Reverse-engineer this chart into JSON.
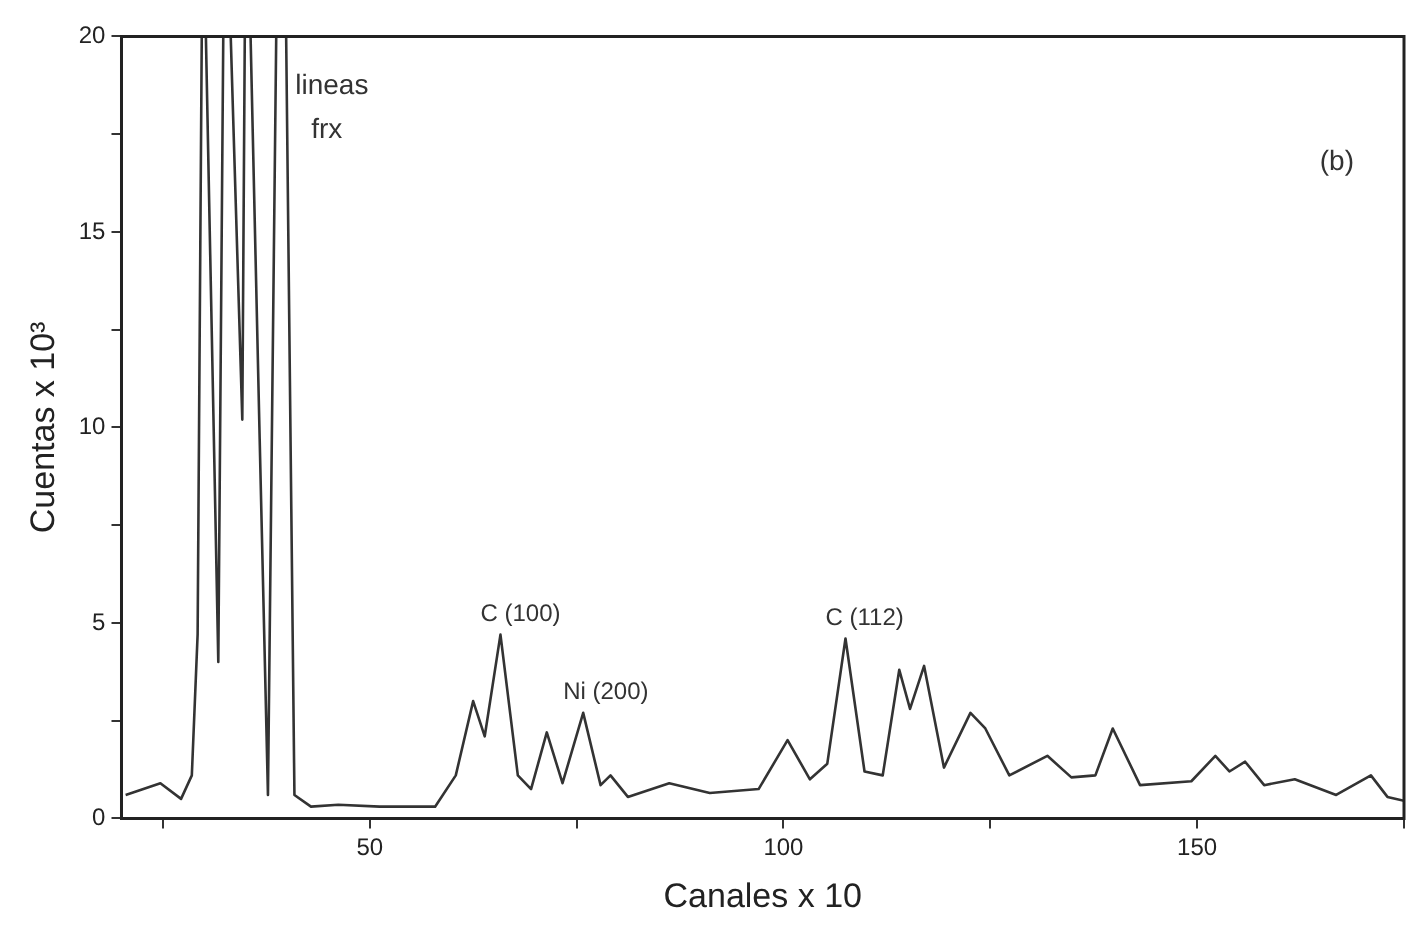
{
  "chart_data": {
    "type": "line",
    "xlabel": "Canales x 10",
    "ylabel": "Cuentas x 10³",
    "xlim": [
      20,
      175
    ],
    "xticks": [
      {
        "value": 25,
        "label": null
      },
      50,
      {
        "value": 75,
        "label": null
      },
      100,
      {
        "value": 125,
        "label": null
      },
      150,
      {
        "value": 175,
        "label": null
      }
    ],
    "ylim": [
      0,
      20
    ],
    "yticks": [
      0,
      {
        "value": 2.5,
        "label": null
      },
      5,
      {
        "value": 7.5,
        "label": null
      },
      10,
      {
        "value": 12.5,
        "label": null
      },
      15,
      {
        "value": 17.5,
        "label": null
      },
      20
    ],
    "grid": false,
    "legend": false,
    "marker": "none",
    "line_style": "solid",
    "annotations": [
      {
        "text": "lineas frx",
        "x": 41,
        "y": 18.5
      },
      {
        "text": "C (100)",
        "x": 65.8,
        "y": 4.7
      },
      {
        "text": "Ni (200)",
        "x": 75.8,
        "y": 2.7
      },
      {
        "text": "C (112)",
        "x": 107.5,
        "y": 4.6
      },
      "(b)"
    ],
    "series": [
      {
        "color": "#333333",
        "x": [
          20.5,
          24.7,
          27.2,
          28.5,
          29.2,
          29.7,
          30.2,
          31.7,
          32.3,
          33.2,
          34.6,
          34.9,
          35.6,
          36.7,
          37.7,
          38.7,
          39.9,
          40.9,
          42.9,
          46.2,
          51.2,
          57.9,
          60.4,
          62.5,
          63.9,
          65.8,
          67.9,
          69.5,
          71.4,
          73.3,
          75.8,
          77.9,
          79.1,
          81.2,
          86.2,
          91.1,
          97,
          100.5,
          103.2,
          105.3,
          107.5,
          109.8,
          112,
          114,
          115.3,
          117,
          119.4,
          122.6,
          124.4,
          127.3,
          131.9,
          134.8,
          137.7,
          139.8,
          143.1,
          149.3,
          152.2,
          153.9,
          155.8,
          158.1,
          161.8,
          166.8,
          171,
          173,
          175
        ],
        "values": [
          0.6,
          0.9,
          0.5,
          1.1,
          4.7,
          20,
          20,
          4.0,
          20,
          20,
          10.2,
          20,
          20,
          9.7,
          0.6,
          20,
          20,
          0.6,
          0.3,
          0.35,
          0.3,
          0.3,
          1.1,
          3.0,
          2.1,
          4.7,
          1.1,
          0.75,
          2.2,
          0.9,
          2.7,
          0.85,
          1.1,
          0.55,
          0.9,
          0.65,
          0.75,
          2.0,
          1.0,
          1.4,
          4.6,
          1.2,
          1.1,
          3.8,
          2.8,
          3.9,
          1.3,
          2.7,
          2.3,
          1.1,
          1.6,
          1.05,
          1.1,
          2.3,
          0.85,
          0.95,
          1.6,
          1.2,
          1.45,
          0.85,
          1.0,
          0.6,
          1.1,
          0.55,
          0.45
        ]
      }
    ]
  }
}
